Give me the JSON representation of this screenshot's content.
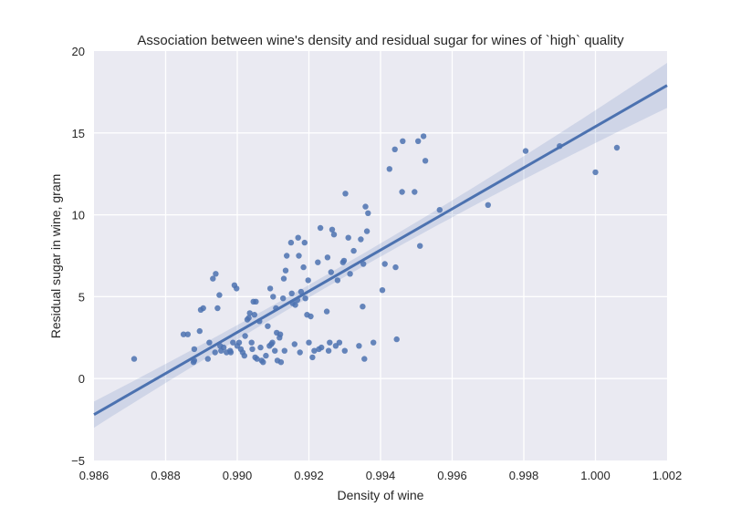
{
  "chart_data": {
    "type": "scatter",
    "title": "Association between wine's density and residual sugar for wines of `high` quality",
    "xlabel": "Density of wine",
    "ylabel": "Residual sugar in wine, gram",
    "xlim": [
      0.986,
      1.002
    ],
    "ylim": [
      -5,
      20
    ],
    "x_ticks": [
      0.986,
      0.988,
      0.99,
      0.992,
      0.994,
      0.996,
      0.998,
      1.0,
      1.002
    ],
    "x_tick_labels": [
      "0.986",
      "0.988",
      "0.990",
      "0.992",
      "0.994",
      "0.996",
      "0.998",
      "1.000",
      "1.002"
    ],
    "y_ticks": [
      -5,
      0,
      5,
      10,
      15,
      20
    ],
    "y_tick_labels": [
      "−5",
      "0",
      "5",
      "10",
      "15",
      "20"
    ],
    "grid": true,
    "colors": {
      "points": "#4c72b0",
      "line": "#4c72b0",
      "band": "#4c72b0",
      "plot_bg": "#eaeaf2",
      "grid": "#ffffff"
    },
    "regression": {
      "x": [
        0.986,
        1.002
      ],
      "y": [
        -2.2,
        17.9
      ],
      "ci_halfwidth": [
        0.9,
        1.0
      ]
    },
    "points": [
      [
        0.98712,
        1.2
      ],
      [
        0.9885,
        2.7
      ],
      [
        0.98862,
        2.7
      ],
      [
        0.9888,
        1.8
      ],
      [
        0.9888,
        1.1
      ],
      [
        0.98878,
        1.0
      ],
      [
        0.98895,
        2.9
      ],
      [
        0.98898,
        4.2
      ],
      [
        0.98905,
        4.3
      ],
      [
        0.98918,
        1.2
      ],
      [
        0.98922,
        2.2
      ],
      [
        0.98932,
        6.1
      ],
      [
        0.9894,
        6.4
      ],
      [
        0.98938,
        1.6
      ],
      [
        0.98945,
        4.3
      ],
      [
        0.9895,
        5.1
      ],
      [
        0.98952,
        2.0
      ],
      [
        0.98955,
        1.7
      ],
      [
        0.98962,
        1.9
      ],
      [
        0.9897,
        1.6
      ],
      [
        0.9898,
        1.7
      ],
      [
        0.98982,
        1.6
      ],
      [
        0.98988,
        2.2
      ],
      [
        0.98992,
        5.7
      ],
      [
        0.98998,
        5.5
      ],
      [
        0.99,
        2.0
      ],
      [
        0.99005,
        2.2
      ],
      [
        0.9901,
        1.8
      ],
      [
        0.99015,
        1.6
      ],
      [
        0.9902,
        1.4
      ],
      [
        0.99022,
        2.6
      ],
      [
        0.99028,
        3.6
      ],
      [
        0.99032,
        3.7
      ],
      [
        0.99035,
        4.0
      ],
      [
        0.9904,
        2.2
      ],
      [
        0.99042,
        1.8
      ],
      [
        0.99045,
        4.7
      ],
      [
        0.99048,
        3.9
      ],
      [
        0.9905,
        1.3
      ],
      [
        0.99052,
        4.7
      ],
      [
        0.99055,
        1.2
      ],
      [
        0.99062,
        3.5
      ],
      [
        0.99065,
        1.9
      ],
      [
        0.99068,
        1.1
      ],
      [
        0.99072,
        1.0
      ],
      [
        0.9908,
        1.4
      ],
      [
        0.99085,
        3.2
      ],
      [
        0.9909,
        2.0
      ],
      [
        0.99092,
        5.5
      ],
      [
        0.99095,
        2.1
      ],
      [
        0.99098,
        2.2
      ],
      [
        0.991,
        5.0
      ],
      [
        0.99105,
        1.7
      ],
      [
        0.99108,
        4.3
      ],
      [
        0.9911,
        2.8
      ],
      [
        0.99112,
        1.1
      ],
      [
        0.99118,
        2.5
      ],
      [
        0.9912,
        2.7
      ],
      [
        0.99122,
        1.0
      ],
      [
        0.99128,
        4.9
      ],
      [
        0.9913,
        6.1
      ],
      [
        0.99132,
        1.7
      ],
      [
        0.99135,
        6.6
      ],
      [
        0.99138,
        7.5
      ],
      [
        0.9915,
        8.3
      ],
      [
        0.99152,
        5.2
      ],
      [
        0.99155,
        4.6
      ],
      [
        0.9916,
        2.1
      ],
      [
        0.99162,
        4.5
      ],
      [
        0.99168,
        4.8
      ],
      [
        0.9917,
        8.6
      ],
      [
        0.99172,
        7.5
      ],
      [
        0.99175,
        1.6
      ],
      [
        0.99178,
        5.3
      ],
      [
        0.99185,
        6.8
      ],
      [
        0.99188,
        8.3
      ],
      [
        0.9919,
        4.9
      ],
      [
        0.99195,
        3.9
      ],
      [
        0.99198,
        6.0
      ],
      [
        0.992,
        2.2
      ],
      [
        0.99205,
        3.8
      ],
      [
        0.9921,
        1.3
      ],
      [
        0.99215,
        1.7
      ],
      [
        0.99225,
        7.1
      ],
      [
        0.99228,
        1.8
      ],
      [
        0.99232,
        9.2
      ],
      [
        0.99235,
        1.9
      ],
      [
        0.9925,
        4.1
      ],
      [
        0.99252,
        7.4
      ],
      [
        0.99255,
        1.7
      ],
      [
        0.99258,
        2.2
      ],
      [
        0.99262,
        6.5
      ],
      [
        0.99265,
        9.1
      ],
      [
        0.9927,
        8.8
      ],
      [
        0.99275,
        2.0
      ],
      [
        0.9928,
        6.0
      ],
      [
        0.99285,
        2.2
      ],
      [
        0.99295,
        7.1
      ],
      [
        0.99298,
        7.2
      ],
      [
        0.993,
        1.7
      ],
      [
        0.99302,
        11.3
      ],
      [
        0.9931,
        8.6
      ],
      [
        0.99315,
        6.4
      ],
      [
        0.99325,
        7.8
      ],
      [
        0.9934,
        2.0
      ],
      [
        0.99345,
        8.5
      ],
      [
        0.9935,
        4.4
      ],
      [
        0.99352,
        7.0
      ],
      [
        0.99355,
        1.2
      ],
      [
        0.99358,
        10.5
      ],
      [
        0.99362,
        9.0
      ],
      [
        0.99365,
        10.1
      ],
      [
        0.9938,
        2.2
      ],
      [
        0.99405,
        5.4
      ],
      [
        0.99412,
        7.0
      ],
      [
        0.99425,
        12.8
      ],
      [
        0.9944,
        14.0
      ],
      [
        0.99442,
        6.8
      ],
      [
        0.99445,
        2.4
      ],
      [
        0.9946,
        11.4
      ],
      [
        0.99462,
        14.5
      ],
      [
        0.99495,
        11.4
      ],
      [
        0.99505,
        14.5
      ],
      [
        0.9951,
        8.1
      ],
      [
        0.9952,
        14.8
      ],
      [
        0.99525,
        13.3
      ],
      [
        0.99565,
        10.3
      ],
      [
        0.997,
        10.6
      ],
      [
        0.99805,
        13.9
      ],
      [
        0.999,
        14.2
      ],
      [
        1.0,
        12.6
      ],
      [
        1.0006,
        14.1
      ]
    ]
  }
}
